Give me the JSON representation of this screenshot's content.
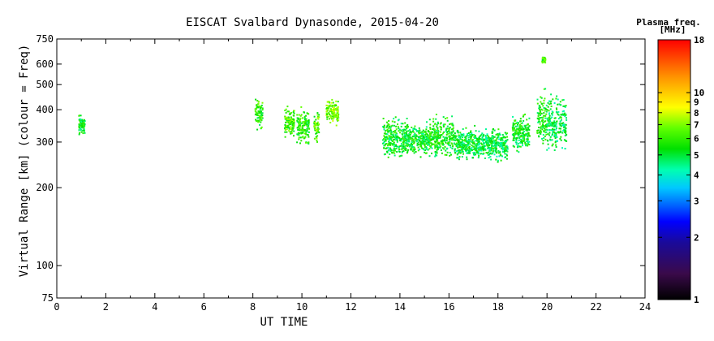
{
  "chart_data": {
    "type": "scatter",
    "title": "EISCAT Svalbard Dynasonde, 2015-04-20",
    "xlabel": "UT TIME",
    "ylabel": "Virtual Range [km] (colour = Freq)",
    "xlim": [
      0,
      24
    ],
    "ylim": [
      75,
      750
    ],
    "yscale": "log",
    "x_ticks": [
      0,
      2,
      4,
      6,
      8,
      10,
      12,
      14,
      16,
      18,
      20,
      22,
      24
    ],
    "y_ticks": [
      75,
      100,
      200,
      300,
      400,
      500,
      600,
      750
    ],
    "grid": false,
    "colorbar": {
      "title_line1": "Plasma freq.",
      "title_line2": "[MHz]",
      "scale": "log",
      "range": [
        1,
        18
      ],
      "ticks": [
        1,
        2,
        3,
        4,
        5,
        6,
        7,
        8,
        9,
        10,
        18
      ]
    },
    "clusters": [
      {
        "x": [
          0.9,
          1.15
        ],
        "y": [
          315,
          395
        ],
        "freq": 5.0
      },
      {
        "x": [
          8.1,
          8.4
        ],
        "y": [
          320,
          460
        ],
        "freq": 5.5
      },
      {
        "x": [
          9.3,
          9.7
        ],
        "y": [
          305,
          420
        ],
        "freq": 6.0
      },
      {
        "x": [
          9.8,
          10.3
        ],
        "y": [
          280,
          425
        ],
        "freq": 5.5
      },
      {
        "x": [
          10.5,
          10.7
        ],
        "y": [
          290,
          410
        ],
        "freq": 6.0
      },
      {
        "x": [
          11.0,
          11.5
        ],
        "y": [
          340,
          445
        ],
        "freq": 6.5
      },
      {
        "x": [
          13.3,
          14.3
        ],
        "y": [
          250,
          385
        ],
        "freq": 5.0
      },
      {
        "x": [
          14.3,
          15.2
        ],
        "y": [
          255,
          370
        ],
        "freq": 5.0
      },
      {
        "x": [
          15.2,
          16.2
        ],
        "y": [
          250,
          390
        ],
        "freq": 5.2
      },
      {
        "x": [
          16.2,
          17.2
        ],
        "y": [
          248,
          350
        ],
        "freq": 4.8
      },
      {
        "x": [
          17.2,
          18.4
        ],
        "y": [
          245,
          350
        ],
        "freq": 4.8
      },
      {
        "x": [
          18.6,
          19.3
        ],
        "y": [
          265,
          400
        ],
        "freq": 5.0
      },
      {
        "x": [
          19.6,
          20.0
        ],
        "y": [
          270,
          500
        ],
        "freq": 5.2
      },
      {
        "x": [
          19.8,
          19.95
        ],
        "y": [
          600,
          650
        ],
        "freq": 6.0
      },
      {
        "x": [
          20.0,
          20.8
        ],
        "y": [
          250,
          500
        ],
        "freq": 4.6
      }
    ]
  }
}
